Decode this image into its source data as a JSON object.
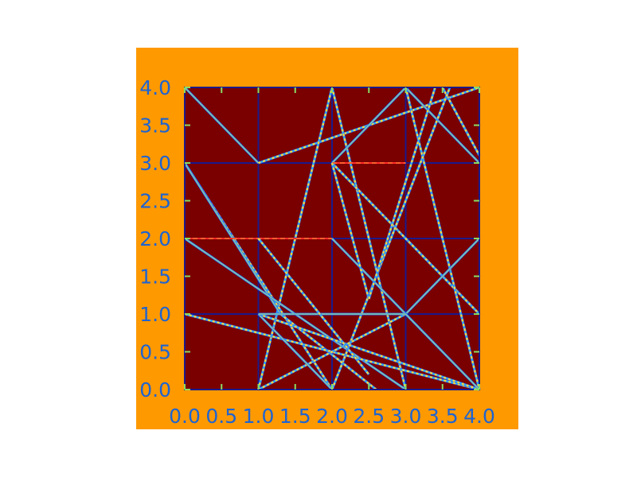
{
  "colors": {
    "figure_background": "#ff9900",
    "axes_background": "#7a0000",
    "grid_line": "#1a1a8c",
    "line_blue": "#2a6cff",
    "line_cyan": "#33ccee",
    "line_yellow": "#ffdd33",
    "line_red": "#ff2b2b",
    "tick_label": "#1e64d2",
    "tick_mark": "#88dd66"
  },
  "chart_data": {
    "type": "line",
    "title": "",
    "xlabel": "",
    "ylabel": "",
    "xlim": [
      0,
      4
    ],
    "ylim": [
      0,
      4
    ],
    "grid": true,
    "x_ticks": [
      0.0,
      0.5,
      1.0,
      1.5,
      2.0,
      2.5,
      3.0,
      3.5,
      4.0
    ],
    "y_ticks": [
      0.0,
      0.5,
      1.0,
      1.5,
      2.0,
      2.5,
      3.0,
      3.5,
      4.0
    ],
    "x_tick_labels": [
      "0.0",
      "0.5",
      "1.0",
      "1.5",
      "2.0",
      "2.5",
      "3.0",
      "3.5",
      "4.0"
    ],
    "y_tick_labels": [
      "0.0",
      "0.5",
      "1.0",
      "1.5",
      "2.0",
      "2.5",
      "3.0",
      "3.5",
      "4.0"
    ],
    "grid_lines": [
      1,
      2,
      3
    ],
    "segments": [
      {
        "x": [
          0,
          1
        ],
        "y": [
          4,
          3
        ],
        "style": "solid"
      },
      {
        "x": [
          1,
          4
        ],
        "y": [
          3,
          4
        ],
        "style": "dashed"
      },
      {
        "x": [
          1,
          2
        ],
        "y": [
          0,
          4
        ],
        "style": "dashed"
      },
      {
        "x": [
          2,
          3
        ],
        "y": [
          4,
          0
        ],
        "style": "dashed"
      },
      {
        "x": [
          2,
          4
        ],
        "y": [
          3,
          1
        ],
        "style": "dashed"
      },
      {
        "x": [
          2,
          3
        ],
        "y": [
          3,
          4
        ],
        "style": "solid"
      },
      {
        "x": [
          3,
          4
        ],
        "y": [
          4,
          3
        ],
        "style": "solid"
      },
      {
        "x": [
          3,
          4
        ],
        "y": [
          4,
          0
        ],
        "style": "dashed"
      },
      {
        "x": [
          3.5,
          4
        ],
        "y": [
          4,
          3.1
        ],
        "style": "dashed"
      },
      {
        "x": [
          2,
          3.2
        ],
        "y": [
          0,
          3
        ],
        "style": "dashed"
      },
      {
        "x": [
          3.2,
          3.6
        ],
        "y": [
          3,
          4
        ],
        "style": "dashed"
      },
      {
        "x": [
          0,
          2
        ],
        "y": [
          3,
          0
        ],
        "style": "dashed"
      },
      {
        "x": [
          0,
          1.3
        ],
        "y": [
          3,
          1.0
        ],
        "style": "solid"
      },
      {
        "x": [
          1.3,
          2.6
        ],
        "y": [
          1.0,
          0
        ],
        "style": "dashed"
      },
      {
        "x": [
          0,
          3
        ],
        "y": [
          2,
          0
        ],
        "style": "solid"
      },
      {
        "x": [
          0,
          4
        ],
        "y": [
          1,
          0
        ],
        "style": "dashed"
      },
      {
        "x": [
          1,
          4
        ],
        "y": [
          1,
          0
        ],
        "style": "dashed"
      },
      {
        "x": [
          1,
          3
        ],
        "y": [
          0,
          1
        ],
        "style": "dashed"
      },
      {
        "x": [
          3,
          4
        ],
        "y": [
          1,
          2
        ],
        "style": "solid"
      },
      {
        "x": [
          1,
          2
        ],
        "y": [
          1,
          0
        ],
        "style": "solid"
      },
      {
        "x": [
          2,
          4
        ],
        "y": [
          2,
          0
        ],
        "style": "solid"
      },
      {
        "x": [
          1,
          3
        ],
        "y": [
          1,
          1
        ],
        "style": "solid"
      },
      {
        "x": [
          2.0,
          3.0
        ],
        "y": [
          3,
          3
        ],
        "style": "red"
      },
      {
        "x": [
          0,
          2
        ],
        "y": [
          2,
          2
        ],
        "style": "red"
      },
      {
        "x": [
          1,
          2.5
        ],
        "y": [
          2,
          0.2
        ],
        "style": "dashed"
      },
      {
        "x": [
          2,
          2.5
        ],
        "y": [
          3,
          1.2
        ],
        "style": "dashed"
      },
      {
        "x": [
          2.5,
          3.4
        ],
        "y": [
          1.2,
          4
        ],
        "style": "dashed"
      }
    ]
  }
}
